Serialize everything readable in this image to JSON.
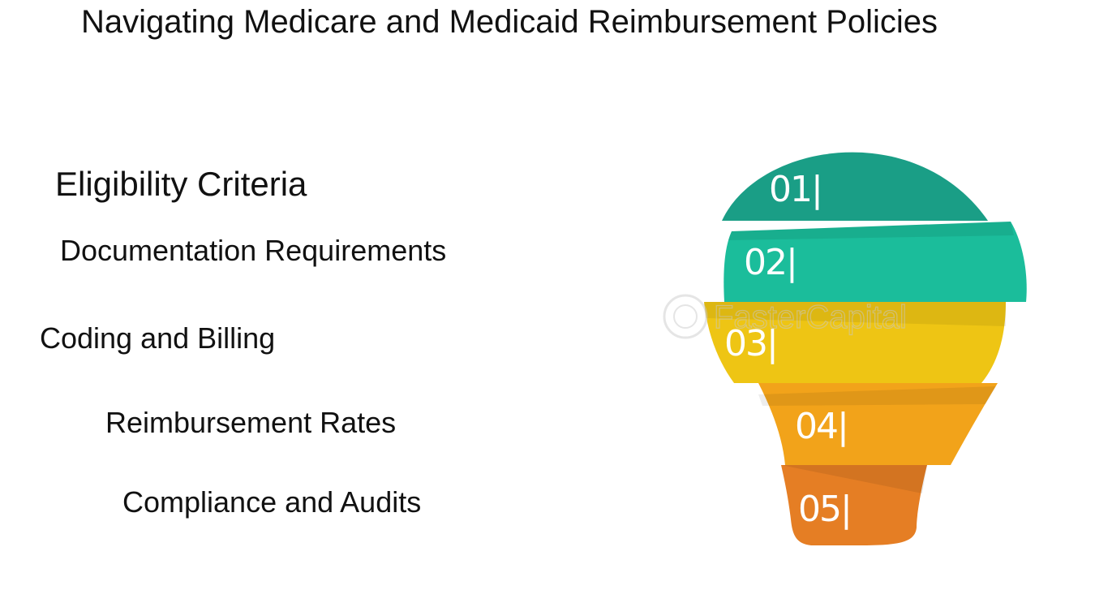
{
  "title": "Navigating Medicare and Medicaid Reimbursement Policies",
  "items": [
    {
      "label": "Eligibility Criteria",
      "number": "01|",
      "color": "#1a9e86"
    },
    {
      "label": "Documentation Requirements",
      "number": "02|",
      "color": "#1bbd9b"
    },
    {
      "label": "Coding and Billing",
      "number": "03|",
      "color": "#eec514"
    },
    {
      "label": "Reimbursement Rates",
      "number": "04|",
      "color": "#f2a31a"
    },
    {
      "label": "Compliance and Audits",
      "number": "05|",
      "color": "#e57e24"
    }
  ],
  "watermark": "FasterCapital"
}
